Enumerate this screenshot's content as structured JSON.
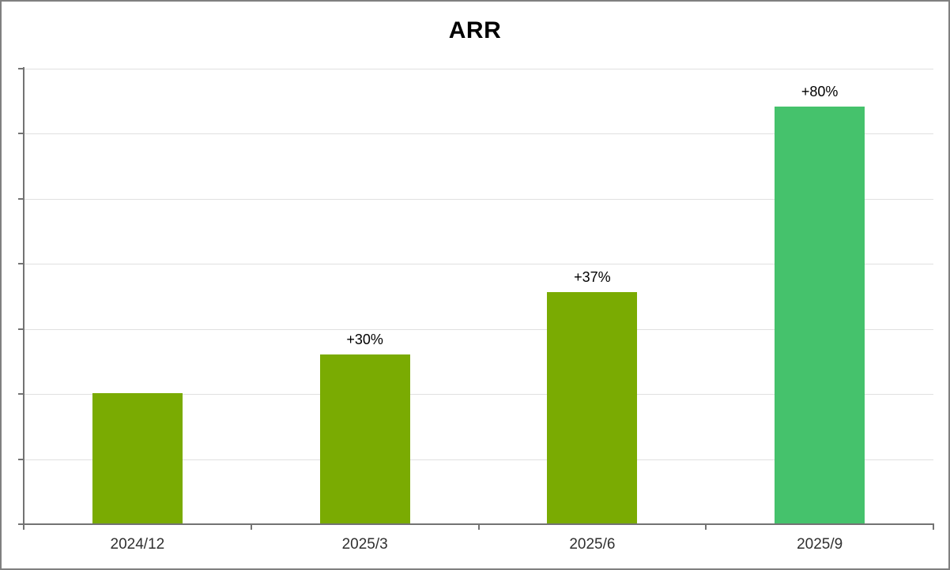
{
  "chart_data": {
    "type": "bar",
    "title": "ARR",
    "categories": [
      "2024/12",
      "2025/3",
      "2025/6",
      "2025/9"
    ],
    "values": [
      100,
      130,
      178,
      320
    ],
    "bar_labels": [
      "",
      "+30%",
      "+37%",
      "+80%"
    ],
    "bar_colors": [
      "#7aab02",
      "#7aab02",
      "#7aab02",
      "#45c26c"
    ],
    "xlabel": "",
    "ylabel": "",
    "ylim": [
      0,
      350
    ],
    "gridline_step": 50,
    "grid": true,
    "legend": false,
    "y_axis_tick_labels_visible": false
  },
  "colors": {
    "bar_default": "#7aab02",
    "bar_highlight": "#45c26c",
    "axis": "#737373",
    "gridline": "#e0e0e0",
    "title_text": "#000000",
    "axis_label_text": "#303030",
    "page_border": "#808080",
    "background": "#ffffff"
  }
}
